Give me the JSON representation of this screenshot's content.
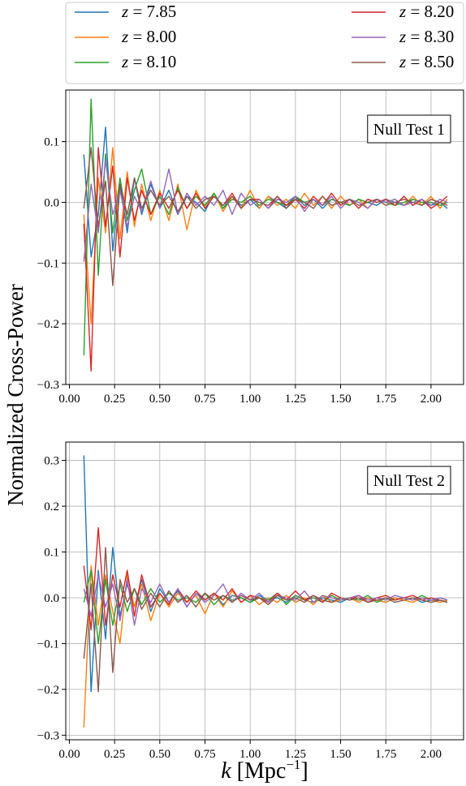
{
  "figure": {
    "ylabel": "Normalized Cross-Power",
    "xlabel_main": "k",
    "xlabel_unit": " [Mpc",
    "xlabel_exp": "−1",
    "xlabel_close": "]"
  },
  "legend": [
    {
      "prefix": "z",
      "value": " = 7.85",
      "color": "#1f77b4"
    },
    {
      "prefix": "z",
      "value": " = 8.00",
      "color": "#ff7f0e"
    },
    {
      "prefix": "z",
      "value": " = 8.10",
      "color": "#2ca02c"
    },
    {
      "prefix": "z",
      "value": " = 8.20",
      "color": "#d62728"
    },
    {
      "prefix": "z",
      "value": " = 8.30",
      "color": "#9467bd"
    },
    {
      "prefix": "z",
      "value": " = 8.50",
      "color": "#8c564b"
    }
  ],
  "chart_data": [
    {
      "type": "line",
      "title": "Null Test 1",
      "xlim": [
        -0.02,
        2.18
      ],
      "ylim": [
        -0.3,
        0.185
      ],
      "xticks": [
        0.0,
        0.25,
        0.5,
        0.75,
        1.0,
        1.25,
        1.5,
        1.75,
        2.0
      ],
      "xtick_labels": [
        "0.00",
        "0.25",
        "0.50",
        "0.75",
        "1.00",
        "1.25",
        "1.50",
        "1.75",
        "2.00"
      ],
      "yticks": [
        -0.3,
        -0.2,
        -0.1,
        0.0,
        0.1
      ],
      "ytick_labels": [
        "−0.3",
        "−0.2",
        "−0.1",
        "0.0",
        "0.1"
      ],
      "grid": true,
      "x": [
        0.08,
        0.12,
        0.16,
        0.2,
        0.24,
        0.28,
        0.32,
        0.36,
        0.4,
        0.45,
        0.5,
        0.55,
        0.6,
        0.65,
        0.7,
        0.75,
        0.8,
        0.85,
        0.9,
        0.95,
        1.0,
        1.05,
        1.1,
        1.15,
        1.2,
        1.25,
        1.3,
        1.35,
        1.4,
        1.45,
        1.5,
        1.55,
        1.6,
        1.65,
        1.7,
        1.75,
        1.8,
        1.85,
        1.9,
        1.95,
        2.0,
        2.05,
        2.09
      ],
      "series": [
        {
          "name": "z = 7.85",
          "color": "#1f77b4",
          "values": [
            0.079,
            -0.09,
            -0.02,
            0.124,
            -0.08,
            0.03,
            -0.05,
            0.04,
            -0.02,
            0.03,
            -0.01,
            0.02,
            -0.02,
            0.01,
            0.0,
            -0.015,
            0.015,
            -0.01,
            0.01,
            -0.005,
            0.005,
            -0.01,
            0.01,
            0.0,
            -0.01,
            0.01,
            -0.005,
            0.005,
            -0.01,
            0.005,
            0.0,
            -0.005,
            0.005,
            0.0,
            -0.005,
            0.005,
            0.0,
            -0.005,
            0.005,
            0.0,
            -0.005,
            0.0,
            -0.01
          ]
        },
        {
          "name": "z = 8.00",
          "color": "#ff7f0e",
          "values": [
            -0.02,
            -0.2,
            0.04,
            -0.05,
            0.09,
            -0.06,
            0.05,
            -0.04,
            0.03,
            -0.03,
            0.02,
            -0.03,
            0.03,
            -0.045,
            0.02,
            -0.01,
            0.015,
            -0.015,
            0.01,
            -0.01,
            0.02,
            -0.01,
            0.01,
            -0.005,
            0.005,
            -0.01,
            0.015,
            -0.005,
            0.01,
            -0.01,
            0.01,
            -0.005,
            0.005,
            -0.01,
            0.005,
            0.0,
            0.005,
            -0.005,
            0.01,
            -0.005,
            0.01,
            -0.01,
            0.005
          ]
        },
        {
          "name": "z = 8.10",
          "color": "#2ca02c",
          "values": [
            -0.252,
            0.17,
            -0.12,
            0.08,
            -0.05,
            0.04,
            -0.03,
            0.02,
            0.055,
            -0.02,
            0.01,
            -0.02,
            0.025,
            -0.01,
            0.01,
            -0.005,
            0.015,
            -0.01,
            0.005,
            0.0,
            0.01,
            -0.005,
            0.005,
            0.0,
            -0.005,
            0.01,
            0.0,
            0.005,
            -0.005,
            0.005,
            0.0,
            -0.005,
            0.005,
            0.0,
            0.005,
            0.0,
            -0.005,
            0.0,
            0.005,
            0.0,
            0.0,
            -0.005,
            0.0
          ]
        },
        {
          "name": "z = 8.20",
          "color": "#d62728",
          "values": [
            -0.035,
            -0.278,
            0.09,
            -0.04,
            0.06,
            -0.09,
            0.04,
            -0.03,
            0.02,
            -0.02,
            0.015,
            -0.01,
            0.02,
            -0.01,
            0.015,
            -0.01,
            0.01,
            -0.005,
            0.015,
            -0.01,
            0.005,
            0.005,
            -0.01,
            0.01,
            -0.005,
            0.005,
            -0.01,
            0.01,
            -0.005,
            0.015,
            -0.005,
            0.005,
            -0.01,
            0.005,
            0.0,
            0.005,
            -0.005,
            0.01,
            -0.005,
            0.005,
            -0.01,
            0.0,
            0.01
          ]
        },
        {
          "name": "z = 8.30",
          "color": "#9467bd",
          "values": [
            -0.098,
            0.03,
            -0.05,
            0.07,
            -0.02,
            0.02,
            -0.04,
            0.01,
            -0.015,
            0.035,
            -0.01,
            0.055,
            -0.02,
            0.015,
            -0.005,
            0.01,
            -0.005,
            0.02,
            -0.02,
            0.015,
            -0.005,
            0.005,
            -0.01,
            0.005,
            0.0,
            0.01,
            -0.015,
            0.005,
            -0.005,
            0.01,
            -0.01,
            0.005,
            0.0,
            -0.01,
            0.005,
            0.0,
            0.005,
            -0.005,
            0.0,
            0.005,
            -0.005,
            0.005,
            0.0
          ]
        },
        {
          "name": "z = 8.50",
          "color": "#8c564b",
          "values": [
            -0.01,
            0.09,
            -0.04,
            0.035,
            -0.137,
            0.03,
            -0.02,
            0.04,
            -0.01,
            0.02,
            -0.005,
            0.01,
            -0.015,
            0.01,
            -0.01,
            0.005,
            0.01,
            -0.005,
            0.01,
            -0.01,
            0.005,
            0.0,
            -0.005,
            0.01,
            -0.01,
            0.005,
            0.0,
            -0.01,
            0.01,
            -0.005,
            0.0,
            0.005,
            -0.005,
            0.0,
            0.005,
            -0.005,
            0.0,
            0.005,
            0.0,
            -0.005,
            0.005,
            0.0,
            -0.005
          ]
        }
      ]
    },
    {
      "type": "line",
      "title": "Null Test 2",
      "xlim": [
        -0.02,
        2.18
      ],
      "ylim": [
        -0.31,
        0.34
      ],
      "xticks": [
        0.0,
        0.25,
        0.5,
        0.75,
        1.0,
        1.25,
        1.5,
        1.75,
        2.0
      ],
      "xtick_labels": [
        "0.00",
        "0.25",
        "0.50",
        "0.75",
        "1.00",
        "1.25",
        "1.50",
        "1.75",
        "2.00"
      ],
      "yticks": [
        -0.3,
        -0.2,
        -0.1,
        0.0,
        0.1,
        0.2,
        0.3
      ],
      "ytick_labels": [
        "−0.3",
        "−0.2",
        "−0.1",
        "0.0",
        "0.1",
        "0.2",
        "0.3"
      ],
      "grid": true,
      "x": [
        0.08,
        0.12,
        0.16,
        0.2,
        0.24,
        0.28,
        0.32,
        0.36,
        0.4,
        0.45,
        0.5,
        0.55,
        0.6,
        0.65,
        0.7,
        0.75,
        0.8,
        0.85,
        0.9,
        0.95,
        1.0,
        1.05,
        1.1,
        1.15,
        1.2,
        1.25,
        1.3,
        1.35,
        1.4,
        1.45,
        1.5,
        1.55,
        1.6,
        1.65,
        1.7,
        1.75,
        1.8,
        1.85,
        1.9,
        1.95,
        2.0,
        2.05,
        2.09
      ],
      "series": [
        {
          "name": "z = 7.85",
          "color": "#1f77b4",
          "values": [
            0.311,
            -0.205,
            0.06,
            -0.09,
            0.11,
            -0.04,
            0.03,
            -0.02,
            0.04,
            -0.03,
            0.02,
            -0.01,
            0.015,
            -0.02,
            0.01,
            -0.005,
            0.01,
            -0.015,
            0.005,
            0.0,
            -0.01,
            0.005,
            -0.005,
            0.0,
            -0.01,
            0.005,
            -0.005,
            -0.01,
            0.0,
            -0.005,
            -0.01,
            0.0,
            -0.005,
            0.0,
            -0.005,
            -0.01,
            0.0,
            -0.005,
            0.0,
            -0.01,
            -0.005,
            -0.005,
            -0.01
          ]
        },
        {
          "name": "z = 8.00",
          "color": "#ff7f0e",
          "values": [
            -0.283,
            0.07,
            -0.06,
            0.05,
            -0.03,
            -0.1,
            0.05,
            -0.02,
            0.03,
            -0.05,
            0.01,
            -0.02,
            0.01,
            -0.01,
            0.005,
            -0.035,
            0.01,
            -0.02,
            0.015,
            -0.01,
            0.005,
            -0.015,
            0.0,
            -0.01,
            0.005,
            -0.01,
            0.0,
            -0.015,
            0.005,
            -0.01,
            -0.005,
            0.0,
            -0.01,
            0.0,
            -0.005,
            -0.01,
            0.0,
            -0.005,
            -0.01,
            0.0,
            -0.005,
            -0.01,
            -0.005
          ]
        },
        {
          "name": "z = 8.10",
          "color": "#2ca02c",
          "values": [
            -0.01,
            0.06,
            -0.1,
            0.04,
            -0.06,
            0.03,
            -0.03,
            0.02,
            -0.015,
            0.02,
            -0.01,
            0.01,
            -0.005,
            0.0,
            -0.01,
            0.01,
            -0.015,
            0.005,
            -0.005,
            0.0,
            -0.01,
            0.0,
            -0.005,
            0.01,
            -0.015,
            0.005,
            -0.005,
            0.0,
            -0.01,
            0.005,
            -0.005,
            0.0,
            -0.005,
            0.005,
            -0.01,
            0.0,
            -0.005,
            0.0,
            -0.005,
            0.005,
            -0.005,
            0.0,
            -0.005
          ]
        },
        {
          "name": "z = 8.20",
          "color": "#d62728",
          "values": [
            0.07,
            -0.07,
            0.153,
            -0.06,
            0.05,
            -0.02,
            0.06,
            -0.04,
            0.05,
            -0.02,
            0.01,
            -0.015,
            0.02,
            -0.01,
            0.015,
            -0.005,
            0.01,
            -0.005,
            0.02,
            -0.01,
            0.005,
            0.0,
            -0.01,
            0.01,
            -0.005,
            0.015,
            -0.005,
            0.005,
            -0.01,
            0.01,
            0.0,
            -0.005,
            0.005,
            -0.01,
            0.0,
            0.005,
            -0.005,
            0.0,
            0.005,
            -0.005,
            0.0,
            -0.005,
            -0.01
          ]
        },
        {
          "name": "z = 8.30",
          "color": "#9467bd",
          "values": [
            0.02,
            -0.04,
            0.05,
            -0.02,
            0.03,
            -0.05,
            0.04,
            -0.06,
            0.02,
            -0.01,
            0.03,
            -0.01,
            0.02,
            -0.02,
            0.01,
            -0.01,
            0.005,
            0.03,
            -0.01,
            0.01,
            -0.005,
            0.01,
            -0.01,
            0.005,
            0.0,
            -0.005,
            0.015,
            -0.01,
            0.005,
            0.0,
            -0.005,
            0.0,
            0.005,
            -0.005,
            0.0,
            -0.005,
            0.005,
            0.0,
            -0.005,
            0.0,
            -0.005,
            0.0,
            -0.005
          ]
        },
        {
          "name": "z = 8.50",
          "color": "#8c564b",
          "values": [
            -0.133,
            0.03,
            -0.205,
            0.11,
            -0.163,
            0.04,
            -0.01,
            0.02,
            -0.025,
            0.01,
            -0.02,
            0.015,
            -0.01,
            0.005,
            -0.02,
            0.01,
            -0.005,
            0.005,
            -0.01,
            0.005,
            -0.005,
            0.0,
            -0.015,
            0.005,
            -0.005,
            0.0,
            -0.01,
            0.005,
            -0.005,
            -0.01,
            0.0,
            -0.005,
            0.0,
            -0.01,
            -0.005,
            0.0,
            -0.01,
            -0.005,
            0.0,
            -0.005,
            -0.01,
            -0.005,
            -0.01
          ]
        }
      ]
    }
  ]
}
